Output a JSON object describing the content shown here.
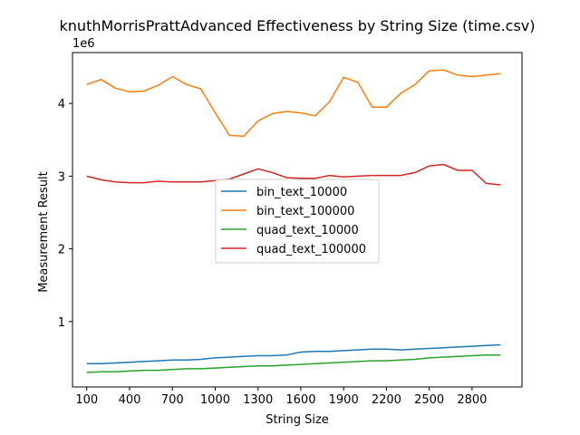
{
  "chart_data": {
    "type": "line",
    "title": "knuthMorrisPrattAdvanced Effectiveness by String Size (time.csv)",
    "xlabel": "String Size",
    "ylabel": "Measurement Result",
    "y_offset_text": "1e6",
    "xlim": [
      0,
      3150
    ],
    "ylim": [
      0.1,
      4.7
    ],
    "x_ticks": [
      100,
      400,
      700,
      1000,
      1300,
      1600,
      1900,
      2200,
      2500,
      2800
    ],
    "x_tick_labels": [
      "100",
      "400",
      "700",
      "1000",
      "1300",
      "1600",
      "1900",
      "2200",
      "2500",
      "2800"
    ],
    "y_ticks": [
      1,
      2,
      3,
      4
    ],
    "y_tick_labels": [
      "1",
      "2",
      "3",
      "4"
    ],
    "grid": false,
    "legend_position": "center",
    "x": [
      100,
      200,
      300,
      400,
      500,
      600,
      700,
      800,
      900,
      1000,
      1100,
      1200,
      1300,
      1400,
      1500,
      1600,
      1700,
      1800,
      1900,
      2000,
      2100,
      2200,
      2300,
      2400,
      2500,
      2600,
      2700,
      2800,
      2900,
      3000
    ],
    "series": [
      {
        "name": "bin_text_10000",
        "color": "#1f77b4",
        "values": [
          0.42,
          0.42,
          0.43,
          0.44,
          0.45,
          0.46,
          0.47,
          0.47,
          0.48,
          0.5,
          0.51,
          0.52,
          0.53,
          0.53,
          0.54,
          0.58,
          0.59,
          0.59,
          0.6,
          0.61,
          0.62,
          0.62,
          0.61,
          0.62,
          0.63,
          0.64,
          0.65,
          0.66,
          0.67,
          0.68
        ]
      },
      {
        "name": "bin_text_100000",
        "color": "#ff7f0e",
        "values": [
          4.26,
          4.33,
          4.21,
          4.16,
          4.17,
          4.25,
          4.37,
          4.26,
          4.2,
          3.87,
          3.56,
          3.55,
          3.76,
          3.86,
          3.89,
          3.87,
          3.83,
          4.02,
          4.36,
          4.29,
          3.95,
          3.95,
          4.14,
          4.26,
          4.45,
          4.46,
          4.39,
          4.37,
          4.39,
          4.41
        ]
      },
      {
        "name": "quad_text_10000",
        "color": "#2ca02c",
        "values": [
          0.3,
          0.31,
          0.31,
          0.32,
          0.33,
          0.33,
          0.34,
          0.35,
          0.35,
          0.36,
          0.37,
          0.38,
          0.39,
          0.39,
          0.4,
          0.41,
          0.42,
          0.43,
          0.44,
          0.45,
          0.46,
          0.46,
          0.47,
          0.48,
          0.5,
          0.51,
          0.52,
          0.53,
          0.54,
          0.54
        ]
      },
      {
        "name": "quad_text_100000",
        "color": "#d62728",
        "values": [
          3.0,
          2.95,
          2.92,
          2.91,
          2.91,
          2.93,
          2.92,
          2.92,
          2.92,
          2.94,
          2.96,
          3.03,
          3.1,
          3.05,
          2.98,
          2.97,
          2.97,
          3.01,
          2.99,
          3.0,
          3.01,
          3.01,
          3.01,
          3.05,
          3.14,
          3.16,
          3.08,
          3.08,
          2.9,
          2.88
        ]
      }
    ]
  }
}
